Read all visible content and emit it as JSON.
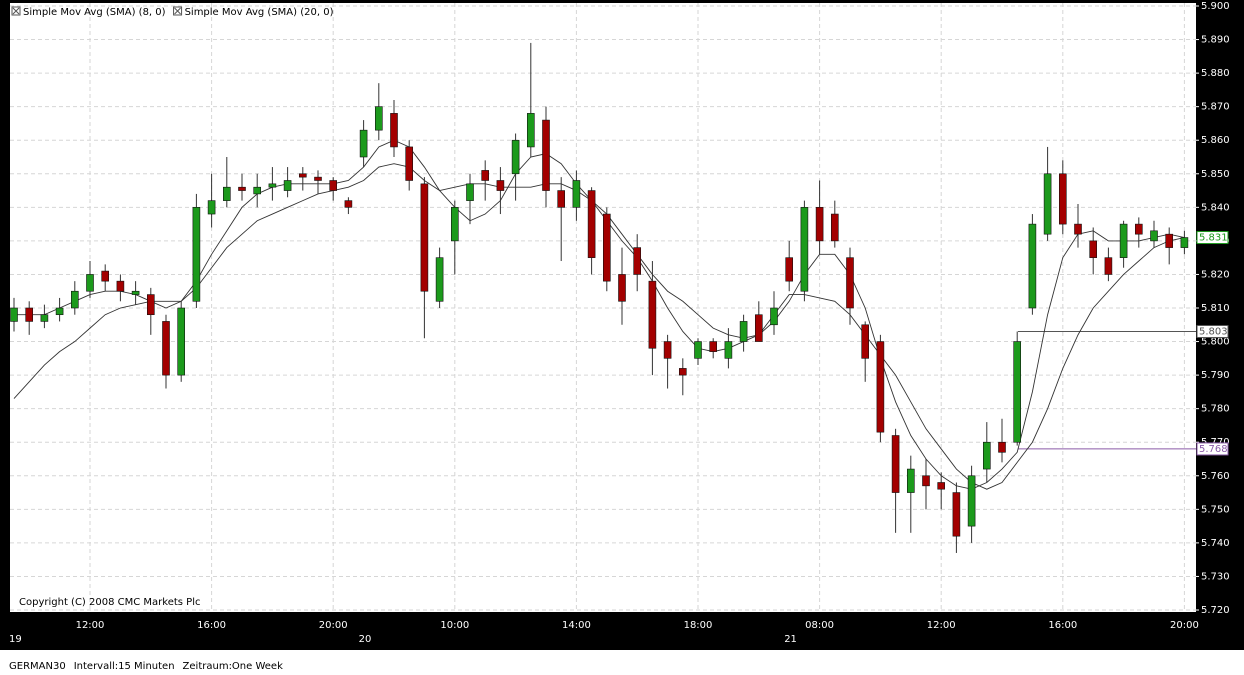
{
  "chart_data": {
    "type": "candlestick",
    "legend": [
      "Simple Mov Avg (SMA) (8, 0)",
      "Simple Mov Avg (SMA) (20, 0)"
    ],
    "copyright": "Copyright (C) 2008 CMC Markets Plc",
    "footer": [
      "GERMAN30",
      "Intervall:15 Minuten",
      "Zeitraum:One Week"
    ],
    "up_color": "#1c9a1c",
    "down_color": "#a30000",
    "grid": true,
    "ylim": [
      5720,
      5900
    ],
    "yticks": [
      {
        "value": 5720,
        "label": "5.720"
      },
      {
        "value": 5730,
        "label": "5.730"
      },
      {
        "value": 5740,
        "label": "5.740"
      },
      {
        "value": 5750,
        "label": "5.750"
      },
      {
        "value": 5760,
        "label": "5.760"
      },
      {
        "value": 5770,
        "label": "5.770"
      },
      {
        "value": 5780,
        "label": "5.780"
      },
      {
        "value": 5790,
        "label": "5.790"
      },
      {
        "value": 5800,
        "label": "5.800"
      },
      {
        "value": 5810,
        "label": "5.810"
      },
      {
        "value": 5820,
        "label": "5.820"
      },
      {
        "value": 5830,
        "label": "5.830"
      },
      {
        "value": 5840,
        "label": "5.840"
      },
      {
        "value": 5850,
        "label": "5.850"
      },
      {
        "value": 5860,
        "label": "5.860"
      },
      {
        "value": 5870,
        "label": "5.870"
      },
      {
        "value": 5880,
        "label": "5.880"
      },
      {
        "value": 5890,
        "label": "5.890"
      },
      {
        "value": 5900,
        "label": "5.900"
      }
    ],
    "levels": [
      {
        "value": 5831,
        "label": "5.831",
        "color": "#1c9a1c"
      },
      {
        "value": 5803,
        "label": "5.803",
        "color": "#555555"
      },
      {
        "value": 5768,
        "label": "5.768",
        "color": "#8a5aa8"
      }
    ],
    "categories": [
      null,
      null,
      null,
      null,
      null,
      "12:00",
      null,
      null,
      null,
      null,
      null,
      null,
      null,
      "16:00",
      null,
      null,
      null,
      null,
      null,
      null,
      null,
      "20:00",
      null,
      null,
      null,
      null,
      null,
      null,
      null,
      "10:00",
      null,
      null,
      null,
      null,
      null,
      null,
      null,
      "14:00",
      null,
      null,
      null,
      null,
      null,
      null,
      null,
      "18:00",
      null,
      null,
      null,
      null,
      null,
      null,
      null,
      "08:00",
      null,
      null,
      null,
      null,
      null,
      null,
      null,
      "12:00",
      null,
      null,
      null,
      null,
      null,
      null,
      null,
      "16:00",
      null,
      null,
      null,
      null,
      null,
      null,
      null,
      "20:00"
    ],
    "dates": [
      "19",
      null,
      null,
      null,
      null,
      null,
      null,
      null,
      null,
      null,
      null,
      null,
      null,
      null,
      null,
      null,
      null,
      null,
      null,
      null,
      null,
      null,
      null,
      "20",
      null,
      null,
      null,
      null,
      null,
      null,
      null,
      null,
      null,
      null,
      null,
      null,
      null,
      null,
      null,
      null,
      null,
      null,
      null,
      null,
      null,
      null,
      null,
      null,
      null,
      null,
      null,
      "21",
      null,
      null,
      null,
      null,
      null,
      null,
      null,
      null,
      null,
      null,
      null,
      null,
      null,
      null,
      null,
      null,
      null,
      null,
      null,
      null,
      null,
      null,
      null,
      null,
      null,
      null
    ],
    "ohlc": [
      [
        5806,
        5813,
        5803,
        5810
      ],
      [
        5810,
        5812,
        5802,
        5806
      ],
      [
        5806,
        5811,
        5804,
        5808
      ],
      [
        5808,
        5813,
        5806,
        5810
      ],
      [
        5810,
        5818,
        5808,
        5815
      ],
      [
        5815,
        5824,
        5813,
        5820
      ],
      [
        5821,
        5823,
        5815,
        5818
      ],
      [
        5818,
        5820,
        5812,
        5815
      ],
      [
        5814,
        5818,
        5811,
        5815
      ],
      [
        5814,
        5816,
        5802,
        5808
      ],
      [
        5806,
        5808,
        5786,
        5790
      ],
      [
        5790,
        5812,
        5788,
        5810
      ],
      [
        5812,
        5844,
        5810,
        5840
      ],
      [
        5838,
        5850,
        5834,
        5842
      ],
      [
        5842,
        5855,
        5840,
        5846
      ],
      [
        5846,
        5850,
        5842,
        5845
      ],
      [
        5844,
        5850,
        5840,
        5846
      ],
      [
        5846,
        5852,
        5842,
        5847
      ],
      [
        5845,
        5852,
        5843,
        5848
      ],
      [
        5850,
        5852,
        5845,
        5849
      ],
      [
        5849,
        5851,
        5844,
        5848
      ],
      [
        5848,
        5849,
        5842,
        5845
      ],
      [
        5842,
        5843,
        5838,
        5840
      ],
      [
        5855,
        5866,
        5852,
        5863
      ],
      [
        5863,
        5877,
        5860,
        5870
      ],
      [
        5868,
        5872,
        5855,
        5858
      ],
      [
        5858,
        5860,
        5845,
        5848
      ],
      [
        5847,
        5849,
        5801,
        5815
      ],
      [
        5812,
        5828,
        5810,
        5825
      ],
      [
        5830,
        5842,
        5820,
        5840
      ],
      [
        5842,
        5850,
        5835,
        5847
      ],
      [
        5851,
        5854,
        5842,
        5848
      ],
      [
        5848,
        5852,
        5838,
        5845
      ],
      [
        5850,
        5862,
        5842,
        5860
      ],
      [
        5858,
        5889,
        5855,
        5868
      ],
      [
        5866,
        5870,
        5840,
        5845
      ],
      [
        5845,
        5849,
        5824,
        5840
      ],
      [
        5840,
        5851,
        5836,
        5848
      ],
      [
        5845,
        5846,
        5820,
        5825
      ],
      [
        5838,
        5840,
        5815,
        5818
      ],
      [
        5820,
        5828,
        5805,
        5812
      ],
      [
        5828,
        5832,
        5815,
        5820
      ],
      [
        5818,
        5824,
        5790,
        5798
      ],
      [
        5800,
        5802,
        5786,
        5795
      ],
      [
        5792,
        5795,
        5784,
        5790
      ],
      [
        5795,
        5801,
        5793,
        5800
      ],
      [
        5800,
        5801,
        5795,
        5797
      ],
      [
        5795,
        5804,
        5792,
        5800
      ],
      [
        5800,
        5808,
        5797,
        5806
      ],
      [
        5808,
        5812,
        5800,
        5800
      ],
      [
        5805,
        5815,
        5802,
        5810
      ],
      [
        5825,
        5830,
        5815,
        5818
      ],
      [
        5815,
        5842,
        5812,
        5840
      ],
      [
        5840,
        5848,
        5826,
        5830
      ],
      [
        5838,
        5842,
        5828,
        5830
      ],
      [
        5825,
        5828,
        5805,
        5810
      ],
      [
        5805,
        5806,
        5788,
        5795
      ],
      [
        5800,
        5802,
        5770,
        5773
      ],
      [
        5772,
        5774,
        5743,
        5755
      ],
      [
        5755,
        5766,
        5743,
        5762
      ],
      [
        5760,
        5765,
        5750,
        5757
      ],
      [
        5758,
        5761,
        5750,
        5756
      ],
      [
        5755,
        5758,
        5737,
        5742
      ],
      [
        5745,
        5763,
        5740,
        5760
      ],
      [
        5762,
        5776,
        5758,
        5770
      ],
      [
        5770,
        5777,
        5764,
        5767
      ],
      [
        5770,
        5803,
        5769,
        5800
      ],
      [
        5810,
        5838,
        5808,
        5835
      ],
      [
        5832,
        5858,
        5830,
        5850
      ],
      [
        5850,
        5854,
        5832,
        5835
      ],
      [
        5835,
        5841,
        5828,
        5832
      ],
      [
        5830,
        5834,
        5820,
        5825
      ],
      [
        5825,
        5828,
        5818,
        5820
      ],
      [
        5825,
        5836,
        5822,
        5835
      ],
      [
        5835,
        5837,
        5828,
        5832
      ],
      [
        5830,
        5836,
        5828,
        5833
      ],
      [
        5832,
        5834,
        5823,
        5828
      ],
      [
        5828,
        5833,
        5826,
        5831
      ]
    ],
    "series": [
      {
        "name": "Simple Mov Avg (SMA) (8, 0)",
        "color": "#333333",
        "values": [
          5808,
          5808,
          5808,
          5810,
          5812,
          5814,
          5815,
          5815,
          5814,
          5812,
          5810,
          5812,
          5818,
          5826,
          5833,
          5840,
          5844,
          5846,
          5847,
          5847,
          5847,
          5847,
          5848,
          5852,
          5858,
          5860,
          5858,
          5852,
          5845,
          5840,
          5836,
          5838,
          5842,
          5850,
          5855,
          5856,
          5853,
          5847,
          5842,
          5836,
          5830,
          5825,
          5818,
          5810,
          5803,
          5798,
          5797,
          5798,
          5800,
          5802,
          5806,
          5812,
          5820,
          5826,
          5826,
          5820,
          5810,
          5795,
          5782,
          5772,
          5765,
          5760,
          5757,
          5756,
          5758,
          5762,
          5767,
          5785,
          5808,
          5825,
          5832,
          5833,
          5830,
          5830,
          5830,
          5831,
          5832,
          5831
        ]
      },
      {
        "name": "Simple Mov Avg (SMA) (20, 0)",
        "color": "#333333",
        "values": [
          5783,
          5788,
          5793,
          5797,
          5800,
          5804,
          5808,
          5810,
          5811,
          5812,
          5812,
          5812,
          5816,
          5822,
          5828,
          5832,
          5836,
          5838,
          5840,
          5842,
          5844,
          5845,
          5846,
          5848,
          5852,
          5853,
          5852,
          5848,
          5845,
          5846,
          5847,
          5847,
          5846,
          5846,
          5846,
          5847,
          5847,
          5845,
          5842,
          5838,
          5832,
          5826,
          5820,
          5815,
          5812,
          5808,
          5804,
          5802,
          5801,
          5802,
          5808,
          5814,
          5814,
          5813,
          5812,
          5808,
          5802,
          5796,
          5790,
          5782,
          5774,
          5768,
          5762,
          5758,
          5756,
          5758,
          5764,
          5770,
          5780,
          5792,
          5802,
          5810,
          5815,
          5820,
          5824,
          5828,
          5830,
          5831
        ]
      }
    ]
  }
}
